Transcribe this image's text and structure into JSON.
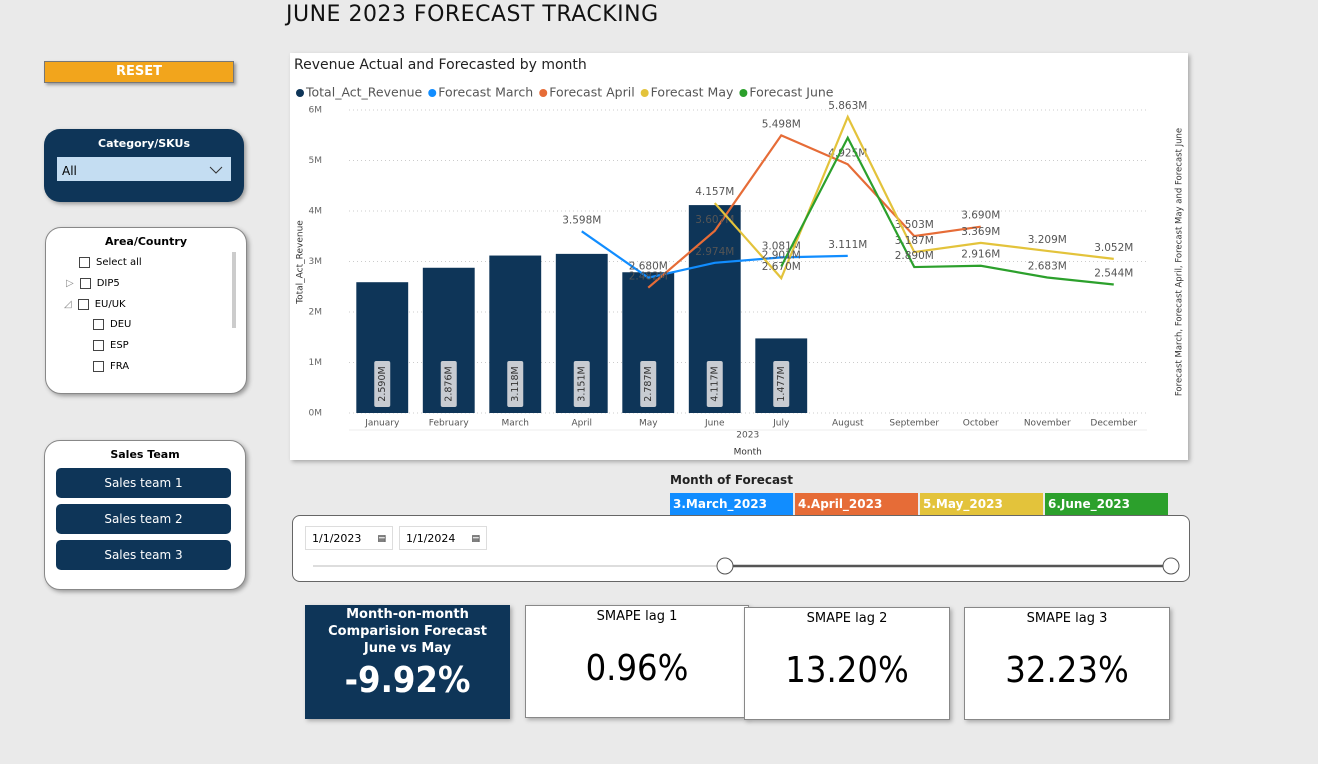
{
  "header": {
    "title": "JUNE 2023 FORECAST TRACKING"
  },
  "sidebar": {
    "reset": "RESET",
    "category": {
      "title": "Category/SKUs",
      "value": "All"
    },
    "area": {
      "title": "Area/Country",
      "items": [
        "Select all",
        "DIP5",
        "EU/UK",
        "DEU",
        "ESP",
        "FRA"
      ]
    },
    "sales_team": {
      "title": "Sales Team",
      "buttons": [
        "Sales team 1",
        "Sales team 2",
        "Sales team 3"
      ]
    }
  },
  "chart_data": {
    "type": "combo",
    "title": "Revenue Actual and Forecasted by month",
    "x_label": "Month",
    "x_sublabel": "2023",
    "y_label": "Total_Act_Revenue",
    "y2_label": "Forecast March, Forecast April, Forecast May and Forecast June",
    "categories": [
      "January",
      "February",
      "March",
      "April",
      "May",
      "June",
      "July",
      "August",
      "September",
      "October",
      "November",
      "December"
    ],
    "ylim": [
      0,
      6
    ],
    "yticks": [
      {
        "value": 0,
        "label": "0M"
      },
      {
        "value": 1,
        "label": "1M"
      },
      {
        "value": 2,
        "label": "2M"
      },
      {
        "value": 3,
        "label": "3M"
      },
      {
        "value": 4,
        "label": "4M"
      },
      {
        "value": 5,
        "label": "5M"
      },
      {
        "value": 6,
        "label": "6M"
      }
    ],
    "grid": true,
    "series": [
      {
        "name": "Total_Act_Revenue",
        "type": "bar",
        "color": "#0e3558",
        "values": [
          2.59,
          2.876,
          3.118,
          3.151,
          2.787,
          4.117,
          1.477,
          null,
          null,
          null,
          null,
          null
        ],
        "value_labels": [
          "2.590M",
          "2.876M",
          "3.118M",
          "3.151M",
          "2.787M",
          "4.117M",
          "1.477M",
          null,
          null,
          null,
          null,
          null
        ]
      },
      {
        "name": "Forecast March",
        "type": "line",
        "color": "#118dff",
        "values": [
          null,
          null,
          null,
          3.598,
          2.68,
          2.974,
          3.081,
          3.111,
          null,
          null,
          null,
          null
        ],
        "value_labels": [
          null,
          null,
          null,
          "3.598M",
          "2.680M",
          "2.974M",
          "3.081M",
          "3.111M",
          null,
          null,
          null,
          null
        ]
      },
      {
        "name": "Forecast April",
        "type": "line",
        "color": "#e66c37",
        "values": [
          null,
          null,
          null,
          null,
          2.482,
          3.607,
          5.498,
          4.925,
          3.503,
          3.69,
          null,
          null
        ],
        "value_labels": [
          null,
          null,
          null,
          null,
          "2.482M",
          "3.607M",
          "5.498M",
          "4.925M",
          "3.503M",
          "3.690M",
          null,
          null
        ]
      },
      {
        "name": "Forecast May",
        "type": "line",
        "color": "#e3c33b",
        "values": [
          null,
          null,
          null,
          null,
          null,
          4.157,
          2.67,
          5.863,
          3.187,
          3.369,
          3.209,
          3.052
        ],
        "value_labels": [
          null,
          null,
          null,
          null,
          null,
          "4.157M",
          "2.670M",
          "5.863M",
          "3.187M",
          "3.369M",
          "3.209M",
          "3.052M"
        ]
      },
      {
        "name": "Forecast June",
        "type": "line",
        "color": "#2ca02c",
        "values": [
          null,
          null,
          null,
          null,
          null,
          null,
          2.901,
          5.45,
          2.89,
          2.916,
          2.683,
          2.544
        ],
        "value_labels": [
          null,
          null,
          null,
          null,
          null,
          null,
          "2.901M",
          null,
          "2.890M",
          "2.916M",
          "2.683M",
          "2.544M"
        ]
      }
    ]
  },
  "forecast_legend": {
    "title": "Month of Forecast",
    "items": [
      {
        "label": "3.March_2023",
        "color": "#118dff"
      },
      {
        "label": "4.April_2023",
        "color": "#e66c37"
      },
      {
        "label": "5.May_2023",
        "color": "#e3c33b"
      },
      {
        "label": "6.June_2023",
        "color": "#2ca02c"
      }
    ]
  },
  "date_slicer": {
    "start": "1/1/2023",
    "end": "1/1/2024"
  },
  "cards": [
    {
      "title_lines": [
        "Month-on-month",
        "Comparision Forecast",
        "June vs May"
      ],
      "value": "-9.92%"
    },
    {
      "title": "SMAPE lag 1",
      "value": "0.96%"
    },
    {
      "title": "SMAPE lag 2",
      "value": "13.20%"
    },
    {
      "title": "SMAPE lag 3",
      "value": "32.23%"
    }
  ]
}
